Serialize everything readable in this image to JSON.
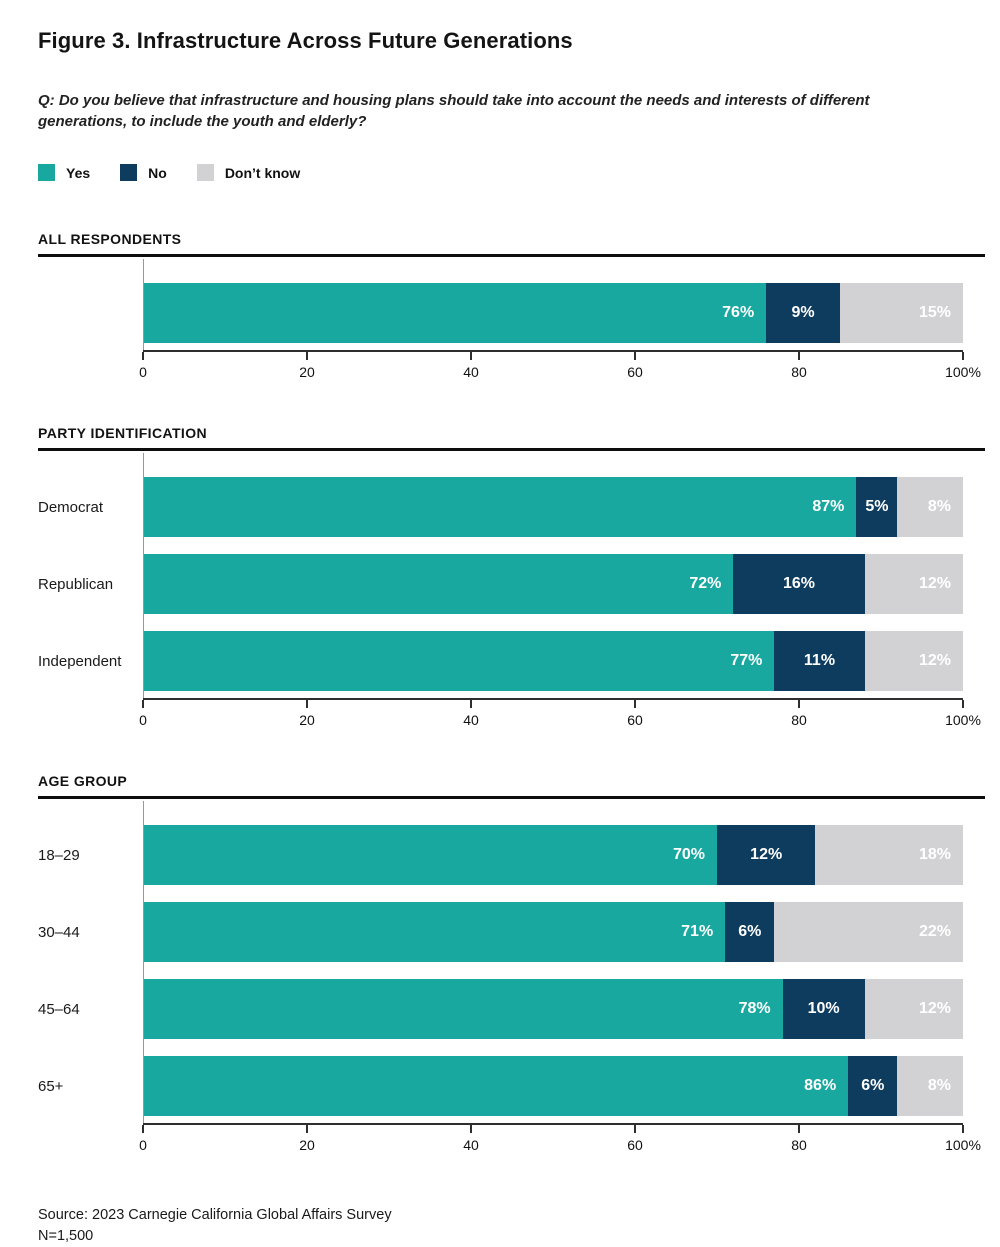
{
  "figure": {
    "title": "Figure 3. Infrastructure Across Future Generations",
    "question_lines": [
      "Q: Do you believe that infrastructure and housing plans should take into account the needs and interests of different",
      "generations, to include the youth and elderly?"
    ]
  },
  "legend": {
    "items": [
      {
        "label": "Yes",
        "color": "#19A8A0"
      },
      {
        "label": "No",
        "color": "#0E3C5E"
      },
      {
        "label": "Don’t know",
        "color": "#D2D2D4"
      }
    ]
  },
  "colors": {
    "yes": "#19A8A0",
    "no": "#0E3C5E",
    "dont_know": "#D2D2D4",
    "axis": "#2E2E2E",
    "section_rule": "#0D0D0D"
  },
  "chart_data": [
    {
      "type": "bar",
      "orientation": "horizontal",
      "stacked": true,
      "section": "ALL RESPONDENTS",
      "categories": [
        ""
      ],
      "series": [
        {
          "name": "Yes",
          "values": [
            76
          ]
        },
        {
          "name": "No",
          "values": [
            9
          ]
        },
        {
          "name": "Don’t know",
          "values": [
            15
          ]
        }
      ],
      "value_suffix": "%",
      "xlim": [
        0,
        100
      ],
      "x_ticks": [
        "0",
        "20",
        "40",
        "60",
        "80",
        "100%"
      ],
      "grid": false,
      "legend_position": "top"
    },
    {
      "type": "bar",
      "orientation": "horizontal",
      "stacked": true,
      "section": "PARTY IDENTIFICATION",
      "categories": [
        "Democrat",
        "Republican",
        "Independent"
      ],
      "series": [
        {
          "name": "Yes",
          "values": [
            87,
            72,
            77
          ]
        },
        {
          "name": "No",
          "values": [
            5,
            16,
            11
          ]
        },
        {
          "name": "Don’t know",
          "values": [
            8,
            12,
            12
          ]
        }
      ],
      "value_suffix": "%",
      "xlim": [
        0,
        100
      ],
      "x_ticks": [
        "0",
        "20",
        "40",
        "60",
        "80",
        "100%"
      ],
      "grid": false,
      "legend_position": "top"
    },
    {
      "type": "bar",
      "orientation": "horizontal",
      "stacked": true,
      "section": "AGE GROUP",
      "categories": [
        "18–29",
        "30–44",
        "45–64",
        "65+"
      ],
      "series": [
        {
          "name": "Yes",
          "values": [
            70,
            71,
            78,
            86
          ]
        },
        {
          "name": "No",
          "values": [
            12,
            6,
            10,
            6
          ]
        },
        {
          "name": "Don’t know",
          "values": [
            18,
            22,
            12,
            8
          ]
        }
      ],
      "value_suffix": "%",
      "xlim": [
        0,
        100
      ],
      "x_ticks": [
        "0",
        "20",
        "40",
        "60",
        "80",
        "100%"
      ],
      "grid": false,
      "legend_position": "top"
    }
  ],
  "footer": {
    "source": "Source: 2023 Carnegie California Global Affairs Survey",
    "n": "N=1,500"
  }
}
